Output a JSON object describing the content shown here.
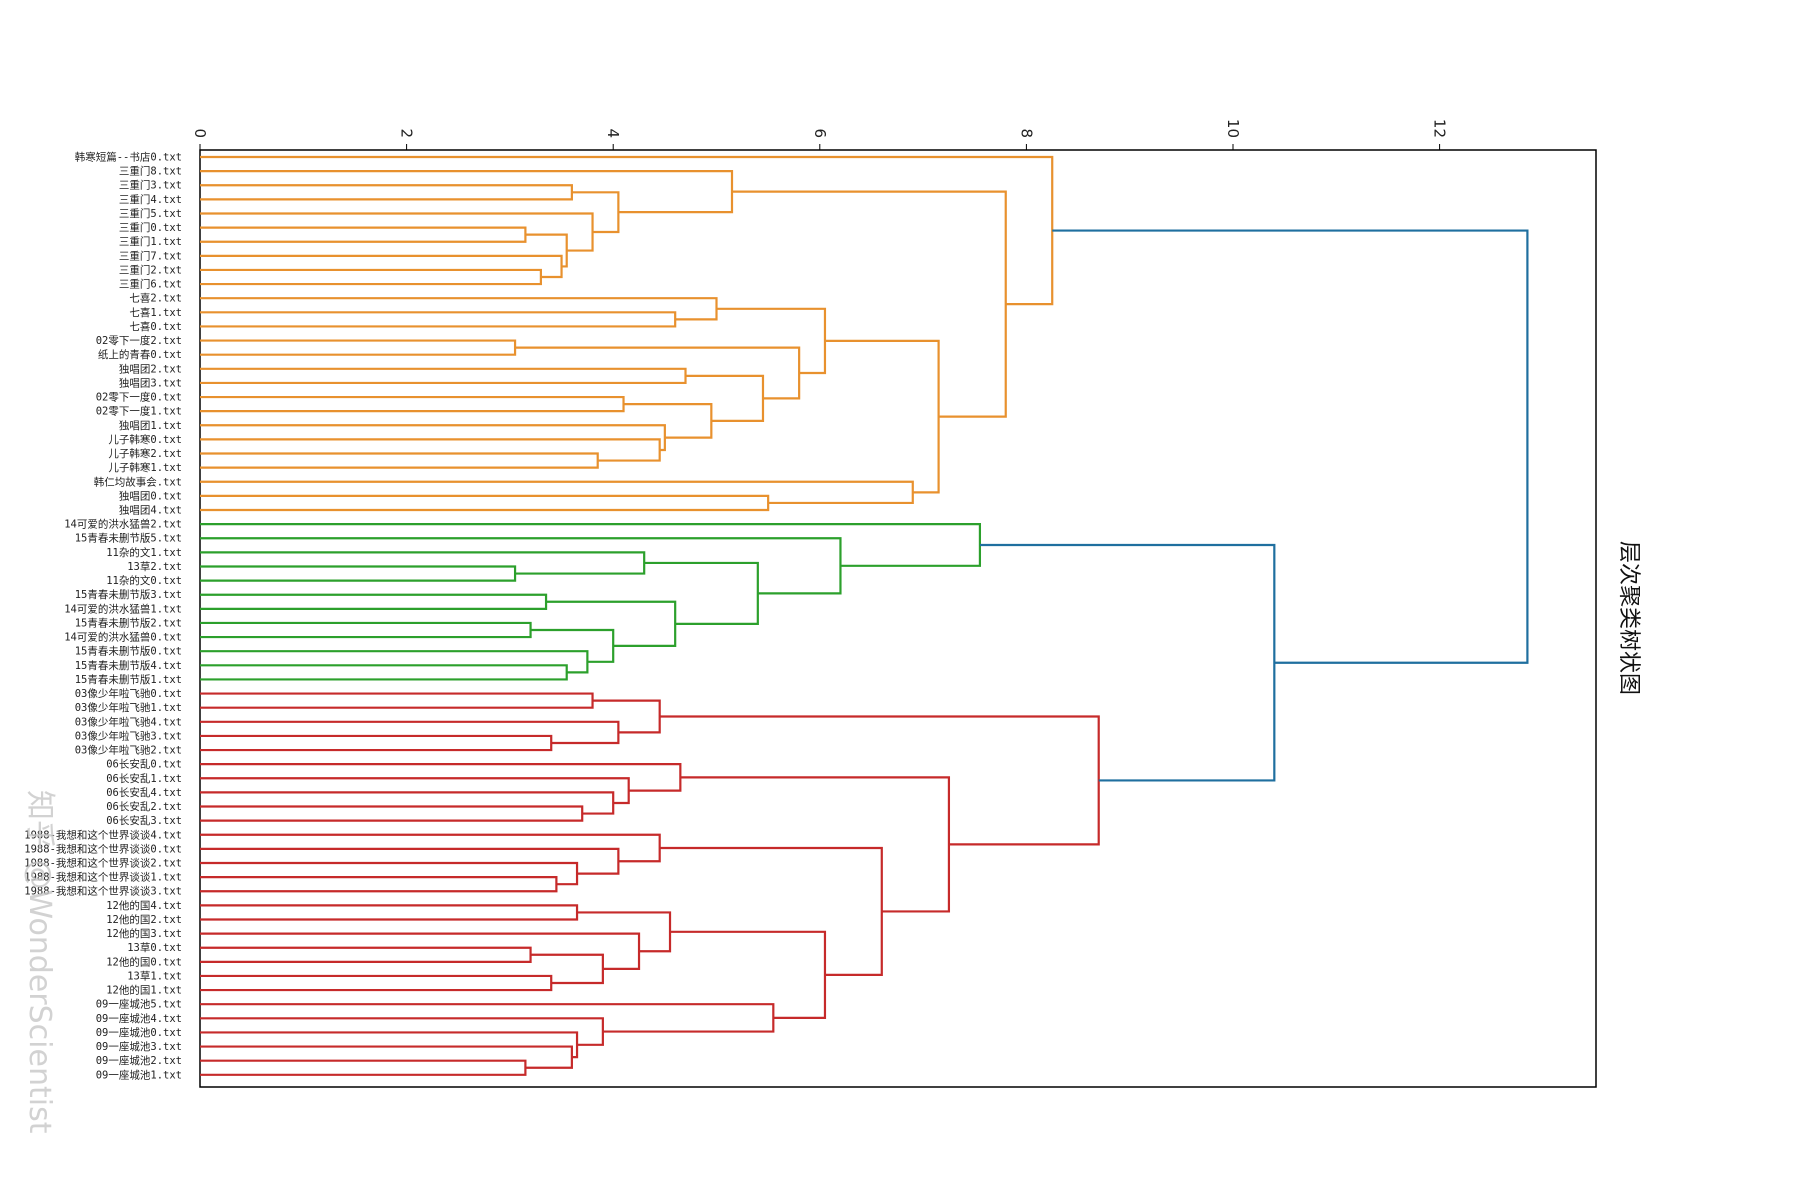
{
  "chart_data": {
    "type": "dendrogram",
    "title": "层次聚类树状图",
    "orientation": "left",
    "xlim": [
      0,
      13.5
    ],
    "xticks": [
      0,
      2,
      4,
      6,
      8,
      10,
      12
    ],
    "grid": false,
    "colors": {
      "cluster1": "#e8912e",
      "cluster2": "#2ca02c",
      "cluster3": "#c62a2a",
      "root": "#1f6f9f"
    },
    "leaves": [
      "韩寒短篇--书店0.txt",
      "三重门8.txt",
      "三重门3.txt",
      "三重门4.txt",
      "三重门5.txt",
      "三重门0.txt",
      "三重门1.txt",
      "三重门7.txt",
      "三重门2.txt",
      "三重门6.txt",
      "七喜2.txt",
      "七喜1.txt",
      "七喜0.txt",
      "02零下一度2.txt",
      "纸上的青春0.txt",
      "独唱团2.txt",
      "独唱团3.txt",
      "02零下一度0.txt",
      "02零下一度1.txt",
      "独唱团1.txt",
      "儿子韩寒0.txt",
      "儿子韩寒2.txt",
      "儿子韩寒1.txt",
      "韩仁均故事会.txt",
      "独唱团0.txt",
      "独唱团4.txt",
      "14可爱的洪水猛兽2.txt",
      "15青春未删节版5.txt",
      "11杂的文1.txt",
      "13草2.txt",
      "11杂的文0.txt",
      "15青春未删节版3.txt",
      "14可爱的洪水猛兽1.txt",
      "15青春未删节版2.txt",
      "14可爱的洪水猛兽0.txt",
      "15青春未删节版0.txt",
      "15青春未删节版4.txt",
      "15青春未删节版1.txt",
      "03像少年啦飞驰0.txt",
      "03像少年啦飞驰1.txt",
      "03像少年啦飞驰4.txt",
      "03像少年啦飞驰3.txt",
      "03像少年啦飞驰2.txt",
      "06长安乱0.txt",
      "06长安乱1.txt",
      "06长安乱4.txt",
      "06长安乱2.txt",
      "06长安乱3.txt",
      "1988-我想和这个世界谈谈4.txt",
      "1988-我想和这个世界谈谈0.txt",
      "1988-我想和这个世界谈谈2.txt",
      "1988-我想和这个世界谈谈1.txt",
      "1988-我想和这个世界谈谈3.txt",
      "12他的国4.txt",
      "12他的国2.txt",
      "12他的国3.txt",
      "13草0.txt",
      "12他的国0.txt",
      "13草1.txt",
      "12他的国1.txt",
      "09一座城池5.txt",
      "09一座城池4.txt",
      "09一座城池0.txt",
      "09一座城池3.txt",
      "09一座城池2.txt",
      "09一座城池1.txt"
    ],
    "merges": [
      {
        "a": "L2",
        "b": "L3",
        "h": 3.6,
        "c": "cluster1"
      },
      {
        "a": "L5",
        "b": "L6",
        "h": 3.15,
        "c": "cluster1"
      },
      {
        "a": "L8",
        "b": "L9",
        "h": 3.3,
        "c": "cluster1"
      },
      {
        "a": "L7",
        "b": "M2",
        "h": 3.5,
        "c": "cluster1"
      },
      {
        "a": "M1",
        "b": "M3",
        "h": 3.55,
        "c": "cluster1"
      },
      {
        "a": "L4",
        "b": "M4",
        "h": 3.8,
        "c": "cluster1"
      },
      {
        "a": "M0",
        "b": "M5",
        "h": 4.05,
        "c": "cluster1"
      },
      {
        "a": "L1",
        "b": "M6",
        "h": 5.15,
        "c": "cluster1"
      },
      {
        "a": "L11",
        "b": "L12",
        "h": 4.6,
        "c": "cluster1"
      },
      {
        "a": "L10",
        "b": "M8",
        "h": 5.0,
        "c": "cluster1"
      },
      {
        "a": "L13",
        "b": "L14",
        "h": 3.05,
        "c": "cluster1"
      },
      {
        "a": "L15",
        "b": "L16",
        "h": 4.7,
        "c": "cluster1"
      },
      {
        "a": "L17",
        "b": "L18",
        "h": 4.1,
        "c": "cluster1"
      },
      {
        "a": "L21",
        "b": "L22",
        "h": 3.85,
        "c": "cluster1"
      },
      {
        "a": "L20",
        "b": "M13",
        "h": 4.45,
        "c": "cluster1"
      },
      {
        "a": "L19",
        "b": "M14",
        "h": 4.5,
        "c": "cluster1"
      },
      {
        "a": "M12",
        "b": "M15",
        "h": 4.95,
        "c": "cluster1"
      },
      {
        "a": "M11",
        "b": "M16",
        "h": 5.45,
        "c": "cluster1"
      },
      {
        "a": "M10",
        "b": "M17",
        "h": 5.8,
        "c": "cluster1"
      },
      {
        "a": "M9",
        "b": "M18",
        "h": 6.05,
        "c": "cluster1"
      },
      {
        "a": "L24",
        "b": "L25",
        "h": 5.5,
        "c": "cluster1"
      },
      {
        "a": "L23",
        "b": "M20",
        "h": 6.9,
        "c": "cluster1"
      },
      {
        "a": "M19",
        "b": "M21",
        "h": 7.15,
        "c": "cluster1"
      },
      {
        "a": "M7",
        "b": "M22",
        "h": 7.8,
        "c": "cluster1"
      },
      {
        "a": "L0",
        "b": "M23",
        "h": 8.25,
        "c": "cluster1"
      },
      {
        "a": "L29",
        "b": "L30",
        "h": 3.05,
        "c": "cluster2"
      },
      {
        "a": "L28",
        "b": "M25",
        "h": 4.3,
        "c": "cluster2"
      },
      {
        "a": "L31",
        "b": "L32",
        "h": 3.35,
        "c": "cluster2"
      },
      {
        "a": "L33",
        "b": "L34",
        "h": 3.2,
        "c": "cluster2"
      },
      {
        "a": "L36",
        "b": "L37",
        "h": 3.55,
        "c": "cluster2"
      },
      {
        "a": "L35",
        "b": "M29",
        "h": 3.75,
        "c": "cluster2"
      },
      {
        "a": "M28",
        "b": "M30",
        "h": 4.0,
        "c": "cluster2"
      },
      {
        "a": "M27",
        "b": "M31",
        "h": 4.6,
        "c": "cluster2"
      },
      {
        "a": "M26",
        "b": "M32",
        "h": 5.4,
        "c": "cluster2"
      },
      {
        "a": "L27",
        "b": "M33",
        "h": 6.2,
        "c": "cluster2"
      },
      {
        "a": "L26",
        "b": "M34",
        "h": 7.55,
        "c": "cluster2"
      },
      {
        "a": "L38",
        "b": "L39",
        "h": 3.8,
        "c": "cluster3"
      },
      {
        "a": "L41",
        "b": "L42",
        "h": 3.4,
        "c": "cluster3"
      },
      {
        "a": "L40",
        "b": "M37",
        "h": 4.05,
        "c": "cluster3"
      },
      {
        "a": "M36",
        "b": "M38",
        "h": 4.45,
        "c": "cluster3"
      },
      {
        "a": "L46",
        "b": "L47",
        "h": 3.7,
        "c": "cluster3"
      },
      {
        "a": "L45",
        "b": "M40",
        "h": 4.0,
        "c": "cluster3"
      },
      {
        "a": "L44",
        "b": "M41",
        "h": 4.15,
        "c": "cluster3"
      },
      {
        "a": "L43",
        "b": "M42",
        "h": 4.65,
        "c": "cluster3"
      },
      {
        "a": "L51",
        "b": "L52",
        "h": 3.45,
        "c": "cluster3"
      },
      {
        "a": "L50",
        "b": "M44",
        "h": 3.65,
        "c": "cluster3"
      },
      {
        "a": "L49",
        "b": "M45",
        "h": 4.05,
        "c": "cluster3"
      },
      {
        "a": "L48",
        "b": "M46",
        "h": 4.45,
        "c": "cluster3"
      },
      {
        "a": "L53",
        "b": "L54",
        "h": 3.65,
        "c": "cluster3"
      },
      {
        "a": "L56",
        "b": "L57",
        "h": 3.2,
        "c": "cluster3"
      },
      {
        "a": "L58",
        "b": "L59",
        "h": 3.4,
        "c": "cluster3"
      },
      {
        "a": "M49",
        "b": "M50",
        "h": 3.9,
        "c": "cluster3"
      },
      {
        "a": "L55",
        "b": "M51",
        "h": 4.25,
        "c": "cluster3"
      },
      {
        "a": "M48",
        "b": "M52",
        "h": 4.55,
        "c": "cluster3"
      },
      {
        "a": "L64",
        "b": "L65",
        "h": 3.15,
        "c": "cluster3"
      },
      {
        "a": "L63",
        "b": "M54",
        "h": 3.6,
        "c": "cluster3"
      },
      {
        "a": "L62",
        "b": "M55",
        "h": 3.65,
        "c": "cluster3"
      },
      {
        "a": "L61",
        "b": "M56",
        "h": 3.9,
        "c": "cluster3"
      },
      {
        "a": "L60",
        "b": "M57",
        "h": 5.55,
        "c": "cluster3"
      },
      {
        "a": "M53",
        "b": "M58",
        "h": 6.05,
        "c": "cluster3"
      },
      {
        "a": "M47",
        "b": "M59",
        "h": 6.6,
        "c": "cluster3"
      },
      {
        "a": "M43",
        "b": "M60",
        "h": 7.25,
        "c": "cluster3"
      },
      {
        "a": "M39",
        "b": "M61",
        "h": 8.7,
        "c": "cluster3"
      },
      {
        "a": "M35",
        "b": "M62",
        "h": 10.4,
        "c": "root"
      },
      {
        "a": "M24",
        "b": "M63",
        "h": 12.85,
        "c": "root"
      }
    ]
  },
  "watermark": "知乎 @WonderScientist"
}
